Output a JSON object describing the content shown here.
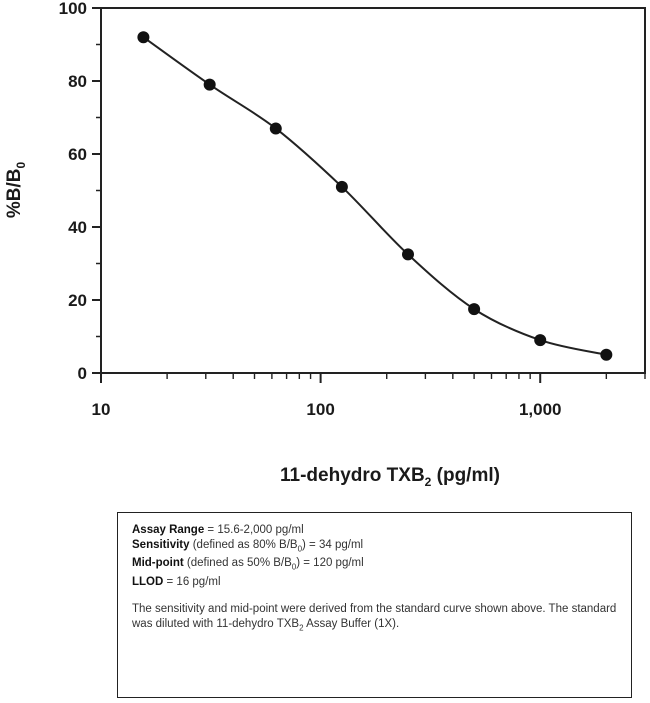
{
  "chart_data": {
    "type": "scatter",
    "xscale": "log",
    "xlim": [
      10,
      3000
    ],
    "ylim": [
      0,
      100
    ],
    "xticks": [
      {
        "value": 10,
        "label": "10"
      },
      {
        "value": 100,
        "label": "100"
      },
      {
        "value": 1000,
        "label": "1,000"
      }
    ],
    "yticks": [
      {
        "value": 0,
        "label": "0"
      },
      {
        "value": 20,
        "label": "20"
      },
      {
        "value": 40,
        "label": "40"
      },
      {
        "value": 60,
        "label": "60"
      },
      {
        "value": 80,
        "label": "80"
      },
      {
        "value": 100,
        "label": "100"
      }
    ],
    "ylabel": {
      "main": "%B/B",
      "sub": "0"
    },
    "xlabel": {
      "main": "11-dehydro TXB",
      "sub": "2",
      "suffix": " (pg/ml)"
    },
    "grid": false,
    "series": [
      {
        "points": [
          {
            "x": 15.6,
            "y": 92
          },
          {
            "x": 31.25,
            "y": 79
          },
          {
            "x": 62.5,
            "y": 67
          },
          {
            "x": 125,
            "y": 51
          },
          {
            "x": 250,
            "y": 32.5
          },
          {
            "x": 500,
            "y": 17.5
          },
          {
            "x": 1000,
            "y": 9
          },
          {
            "x": 2000,
            "y": 5
          }
        ],
        "fit_curve": true
      }
    ]
  },
  "info_box": {
    "range_label": "Assay Range",
    "range_value": " = 15.6-2,000 pg/ml",
    "sensitivity_label": "Sensitivity",
    "sensitivity_pre": " (defined as 80% B/B",
    "sensitivity_sub": "0",
    "sensitivity_post": ") = 34 pg/ml",
    "midpoint_label": "Mid-point",
    "midpoint_pre": " (defined as 50% B/B",
    "midpoint_sub": "0",
    "midpoint_post": ") = 120 pg/ml",
    "llod_label": "LLOD",
    "llod_value": " = 16 pg/ml",
    "note_pre": "The sensitivity and mid-point were derived from the standard curve shown above. The standard was diluted with 11-dehydro TXB",
    "note_sub": "2",
    "note_post": " Assay Buffer (1X)."
  }
}
